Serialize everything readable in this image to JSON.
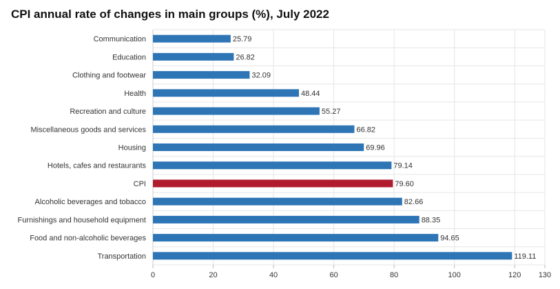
{
  "chart_data": {
    "type": "bar",
    "orientation": "horizontal",
    "title": "CPI annual rate of changes in main groups (%), July 2022",
    "xlabel": "",
    "ylabel": "",
    "xlim": [
      0,
      130
    ],
    "x_ticks": [
      0,
      20,
      40,
      60,
      80,
      100,
      120,
      130
    ],
    "grid": true,
    "legend": "none",
    "categories": [
      "Communication",
      "Education",
      "Clothing and footwear",
      "Health",
      "Recreation and culture",
      "Miscellaneous goods and services",
      "Housing",
      "Hotels, cafes and restaurants",
      "CPI",
      "Alcoholic beverages and tobacco",
      "Furnishings and household equipment",
      "Food and non-alcoholic beverages",
      "Transportation"
    ],
    "values": [
      25.79,
      26.82,
      32.09,
      48.44,
      55.27,
      66.82,
      69.96,
      79.14,
      79.6,
      82.66,
      88.35,
      94.65,
      119.11
    ],
    "value_labels": [
      "25.79",
      "26.82",
      "32.09",
      "48.44",
      "55.27",
      "66.82",
      "69.96",
      "79.14",
      "79.60",
      "82.66",
      "88.35",
      "94.65",
      "119.11"
    ],
    "colors": {
      "default": "#2e75b6",
      "highlight": "#b01c2e",
      "highlight_category": "CPI",
      "grid": "#e6e6e6"
    }
  }
}
